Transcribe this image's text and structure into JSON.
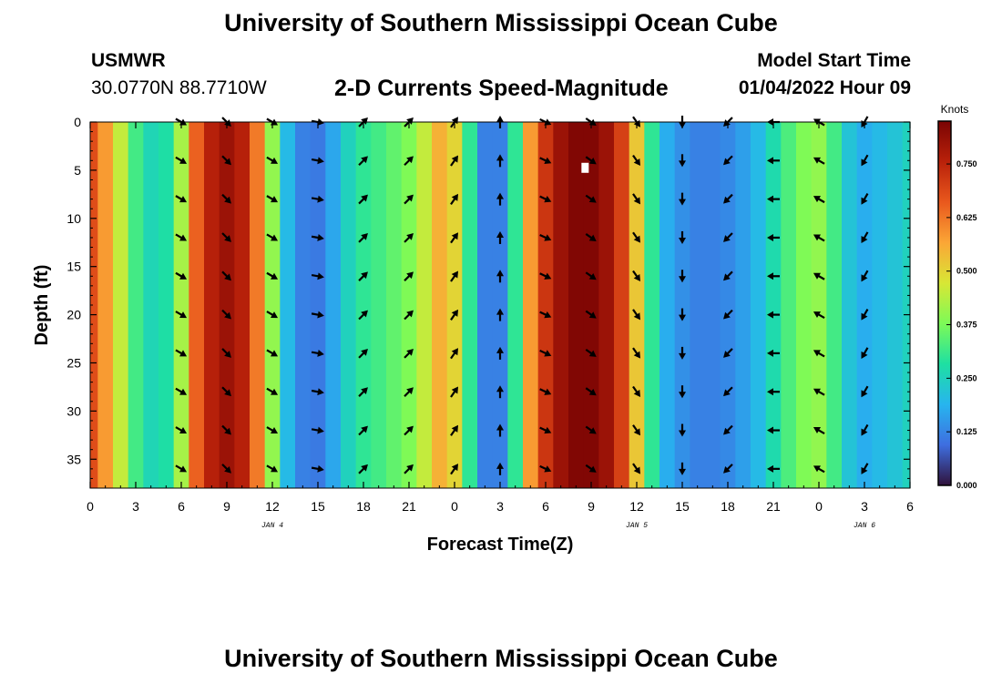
{
  "header": {
    "title": "University of Southern Mississippi Ocean Cube",
    "station_id": "USMWR",
    "coordinates": "30.0770N  88.7710W",
    "plot_title": "2-D Currents Speed-Magnitude",
    "model_start_label": "Model Start Time",
    "model_start_value": "01/04/2022 Hour 09"
  },
  "footer": {
    "title": "University of Southern Mississippi Ocean Cube"
  },
  "colors": {
    "stops": [
      "#30123b",
      "#3e6ee0",
      "#27b5ef",
      "#1ee0a2",
      "#7dfa57",
      "#d8e735",
      "#fba636",
      "#e9581d",
      "#b9210a",
      "#7a0403"
    ],
    "arrow": "#000000",
    "marker": "#ffffff"
  },
  "chart_data": {
    "type": "heatmap",
    "title": "2-D Currents Speed-Magnitude",
    "xlabel": "Forecast Time(Z)",
    "ylabel": "Depth (ft)",
    "xlim": [
      0,
      54
    ],
    "ylim": [
      38,
      0
    ],
    "x_ticks": [
      {
        "h": 0,
        "label": "0"
      },
      {
        "h": 3,
        "label": "3"
      },
      {
        "h": 6,
        "label": "6"
      },
      {
        "h": 9,
        "label": "9"
      },
      {
        "h": 12,
        "label": "12"
      },
      {
        "h": 15,
        "label": "15"
      },
      {
        "h": 18,
        "label": "18"
      },
      {
        "h": 21,
        "label": "21"
      },
      {
        "h": 24,
        "label": "0"
      },
      {
        "h": 27,
        "label": "3"
      },
      {
        "h": 30,
        "label": "6"
      },
      {
        "h": 33,
        "label": "9"
      },
      {
        "h": 36,
        "label": "12"
      },
      {
        "h": 39,
        "label": "15"
      },
      {
        "h": 42,
        "label": "18"
      },
      {
        "h": 45,
        "label": "21"
      },
      {
        "h": 48,
        "label": "0"
      },
      {
        "h": 51,
        "label": "3"
      },
      {
        "h": 54,
        "label": "6"
      }
    ],
    "day_labels": [
      {
        "h": 12,
        "label": "JAN 4"
      },
      {
        "h": 36,
        "label": "JAN 5"
      },
      {
        "h": 51,
        "label": "JAN 6"
      }
    ],
    "y_ticks": [
      0,
      5,
      10,
      15,
      20,
      25,
      30,
      35
    ],
    "colorbar": {
      "unit": "Knots",
      "min": 0.0,
      "max": 0.85,
      "ticks": [
        "0.000",
        "0.125",
        "0.250",
        "0.375",
        "0.500",
        "0.625",
        "0.750"
      ]
    },
    "marker": {
      "h": 32.6,
      "depth": 4.8
    },
    "depth_levels": [
      0,
      4,
      8,
      12,
      16,
      20,
      24,
      28,
      32,
      36
    ],
    "speed_profile": [
      {
        "h": 0,
        "speed": 0.68
      },
      {
        "h": 1,
        "speed": 0.58
      },
      {
        "h": 2,
        "speed": 0.45
      },
      {
        "h": 3,
        "speed": 0.32
      },
      {
        "h": 4,
        "speed": 0.26
      },
      {
        "h": 5,
        "speed": 0.28
      },
      {
        "h": 6,
        "speed": 0.42
      },
      {
        "h": 7,
        "speed": 0.65
      },
      {
        "h": 8,
        "speed": 0.76
      },
      {
        "h": 9,
        "speed": 0.8
      },
      {
        "h": 10,
        "speed": 0.76
      },
      {
        "h": 11,
        "speed": 0.62
      },
      {
        "h": 12,
        "speed": 0.4
      },
      {
        "h": 13,
        "speed": 0.2
      },
      {
        "h": 14,
        "speed": 0.12
      },
      {
        "h": 15,
        "speed": 0.11
      },
      {
        "h": 16,
        "speed": 0.17
      },
      {
        "h": 17,
        "speed": 0.25
      },
      {
        "h": 18,
        "speed": 0.3
      },
      {
        "h": 19,
        "speed": 0.32
      },
      {
        "h": 20,
        "speed": 0.35
      },
      {
        "h": 21,
        "speed": 0.38
      },
      {
        "h": 22,
        "speed": 0.45
      },
      {
        "h": 23,
        "speed": 0.55
      },
      {
        "h": 24,
        "speed": 0.5
      },
      {
        "h": 25,
        "speed": 0.3
      },
      {
        "h": 26,
        "speed": 0.12
      },
      {
        "h": 27,
        "speed": 0.12
      },
      {
        "h": 28,
        "speed": 0.3
      },
      {
        "h": 29,
        "speed": 0.58
      },
      {
        "h": 30,
        "speed": 0.72
      },
      {
        "h": 31,
        "speed": 0.8
      },
      {
        "h": 32,
        "speed": 0.84
      },
      {
        "h": 33,
        "speed": 0.84
      },
      {
        "h": 34,
        "speed": 0.8
      },
      {
        "h": 35,
        "speed": 0.7
      },
      {
        "h": 36,
        "speed": 0.52
      },
      {
        "h": 37,
        "speed": 0.3
      },
      {
        "h": 38,
        "speed": 0.18
      },
      {
        "h": 39,
        "speed": 0.14
      },
      {
        "h": 40,
        "speed": 0.12
      },
      {
        "h": 41,
        "speed": 0.12
      },
      {
        "h": 42,
        "speed": 0.13
      },
      {
        "h": 43,
        "speed": 0.16
      },
      {
        "h": 44,
        "speed": 0.2
      },
      {
        "h": 45,
        "speed": 0.27
      },
      {
        "h": 46,
        "speed": 0.33
      },
      {
        "h": 47,
        "speed": 0.38
      },
      {
        "h": 48,
        "speed": 0.4
      },
      {
        "h": 49,
        "speed": 0.32
      },
      {
        "h": 50,
        "speed": 0.22
      },
      {
        "h": 51,
        "speed": 0.18
      },
      {
        "h": 52,
        "speed": 0.2
      },
      {
        "h": 53,
        "speed": 0.22
      },
      {
        "h": 54,
        "speed": 0.25
      }
    ],
    "arrows": [
      {
        "h": 6,
        "dir": 120
      },
      {
        "h": 9,
        "dir": 135
      },
      {
        "h": 12,
        "dir": 120
      },
      {
        "h": 15,
        "dir": 100
      },
      {
        "h": 18,
        "dir": 45
      },
      {
        "h": 21,
        "dir": 45
      },
      {
        "h": 24,
        "dir": 35
      },
      {
        "h": 27,
        "dir": 0
      },
      {
        "h": 30,
        "dir": 115
      },
      {
        "h": 33,
        "dir": 125
      },
      {
        "h": 36,
        "dir": 145
      },
      {
        "h": 39,
        "dir": 180
      },
      {
        "h": 42,
        "dir": 225
      },
      {
        "h": 45,
        "dir": 270
      },
      {
        "h": 48,
        "dir": 300
      },
      {
        "h": 51,
        "dir": 210
      }
    ]
  }
}
